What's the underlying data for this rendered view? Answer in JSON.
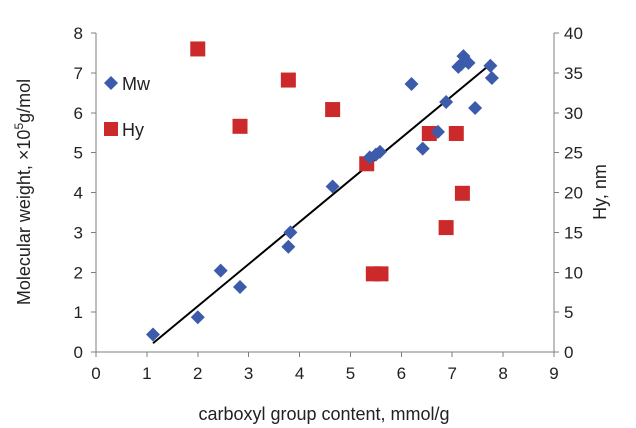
{
  "chart_data": {
    "type": "scatter",
    "title": "",
    "xlabel": "carboxyl group content, mmol/g",
    "ylabel_left_parts": [
      "Molecular weight, ×10",
      "5",
      "g/mol"
    ],
    "ylabel_right": "Hy, nm",
    "xlim": [
      0,
      9
    ],
    "ylim_left": [
      0,
      8
    ],
    "ylim_right": [
      0,
      40
    ],
    "x_ticks": [
      "0",
      "1",
      "2",
      "3",
      "4",
      "5",
      "6",
      "7",
      "8",
      "9"
    ],
    "y_left_ticks": [
      "0",
      "1",
      "2",
      "3",
      "4",
      "5",
      "6",
      "7",
      "8"
    ],
    "y_right_ticks": [
      "0",
      "5",
      "10",
      "15",
      "20",
      "25",
      "30",
      "35",
      "40"
    ],
    "grid": false,
    "legend_position": "top-left",
    "series": [
      {
        "name": "Mw",
        "marker": "diamond",
        "color": "#3d5bab",
        "axis": "left",
        "x": [
          1.12,
          2.0,
          2.45,
          2.83,
          3.78,
          3.82,
          4.65,
          5.38,
          5.5,
          5.58,
          6.2,
          6.42,
          6.72,
          6.88,
          7.12,
          7.18,
          7.22,
          7.32,
          7.45,
          7.75,
          7.78
        ],
        "y": [
          0.44,
          0.87,
          2.04,
          1.63,
          2.64,
          3.0,
          4.15,
          4.88,
          4.95,
          5.02,
          6.72,
          5.1,
          5.52,
          6.27,
          7.15,
          7.22,
          7.42,
          7.25,
          6.12,
          7.18,
          6.87
        ]
      },
      {
        "name": "Hy",
        "marker": "square",
        "color": "#cc2a2a",
        "axis": "right",
        "x": [
          2.0,
          2.83,
          3.78,
          4.65,
          5.32,
          5.45,
          5.6,
          6.55,
          6.88,
          7.08,
          7.2
        ],
        "y": [
          38.0,
          28.3,
          34.1,
          30.4,
          23.6,
          9.8,
          9.8,
          27.4,
          15.6,
          27.4,
          19.9
        ]
      }
    ],
    "trendline": {
      "series": "Mw",
      "color": "#000000",
      "x": [
        1.12,
        7.8
      ],
      "y": [
        0.22,
        7.27
      ]
    }
  }
}
